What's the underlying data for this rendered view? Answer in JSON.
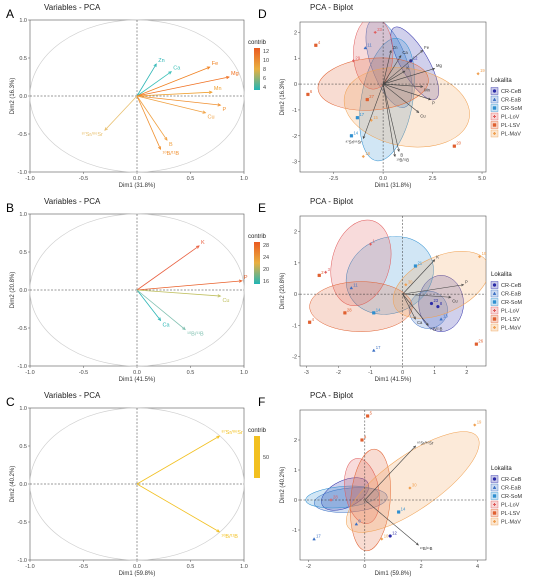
{
  "panels": {
    "A": "A",
    "B": "B",
    "C": "C",
    "D": "D",
    "E": "E",
    "F": "F"
  },
  "legend": {
    "title": "Lokalita",
    "entries": [
      {
        "label": "CR-CeB",
        "color": "#2b2ba8",
        "shape": "circle"
      },
      {
        "label": "CR-EaB",
        "color": "#3a6fc4",
        "shape": "triangle"
      },
      {
        "label": "CR-SoM",
        "color": "#2e8fd0",
        "shape": "square"
      },
      {
        "label": "PL-LoV",
        "color": "#e05a5a",
        "shape": "plus"
      },
      {
        "label": "PL-LSV",
        "color": "#e06030",
        "shape": "square-x"
      },
      {
        "label": "PL-MaV",
        "color": "#f0a050",
        "shape": "diamond"
      }
    ]
  },
  "contrib_legends": {
    "A": {
      "title": "contrib",
      "ticks": [
        "12",
        "10",
        "8",
        "6",
        "4"
      ]
    },
    "B": {
      "title": "contrib",
      "ticks": [
        "28",
        "24",
        "20",
        "16"
      ]
    },
    "C": {
      "title": "contrib",
      "ticks": [
        "50"
      ]
    }
  },
  "chart_data": [
    {
      "id": "A",
      "type": "scatter",
      "title": "Variables - PCA",
      "xlabel": "Dim1 (31.8%)",
      "ylabel": "Dim2 (16.3%)",
      "xlim": [
        -1.0,
        1.0
      ],
      "ylim": [
        -1.0,
        1.0
      ],
      "xticks": [
        "-1.0",
        "-0.5",
        "0.0",
        "0.5",
        "1.0"
      ],
      "yticks": [
        "1.0",
        "0.5",
        "0.0",
        "-0.5",
        "-1.0"
      ],
      "vectors": [
        {
          "label": "Zn",
          "x": 0.18,
          "y": 0.42,
          "color": "#2bb5b5"
        },
        {
          "label": "Ca",
          "x": 0.32,
          "y": 0.32,
          "color": "#3cc0b8"
        },
        {
          "label": "Fe",
          "x": 0.68,
          "y": 0.38,
          "color": "#f08020"
        },
        {
          "label": "Mg",
          "x": 0.86,
          "y": 0.25,
          "color": "#f07020"
        },
        {
          "label": "Mn",
          "x": 0.7,
          "y": 0.05,
          "color": "#f0a030"
        },
        {
          "label": "P",
          "x": 0.78,
          "y": -0.12,
          "color": "#f09030"
        },
        {
          "label": "Cu",
          "x": 0.64,
          "y": -0.22,
          "color": "#f0a040"
        },
        {
          "label": "B",
          "x": 0.28,
          "y": -0.58,
          "color": "#f0a040"
        },
        {
          "label": "¹⁰B/¹¹B",
          "x": 0.22,
          "y": -0.7,
          "color": "#f09030"
        },
        {
          "label": "⁸⁷Sr/⁸⁶Sr",
          "x": -0.3,
          "y": -0.45,
          "color": "#e8c070"
        }
      ]
    },
    {
      "id": "B",
      "type": "scatter",
      "title": "Variables - PCA",
      "xlabel": "Dim1 (41.5%)",
      "ylabel": "Dim2 (20.8%)",
      "xlim": [
        -1.0,
        1.0
      ],
      "ylim": [
        -1.0,
        1.0
      ],
      "xticks": [
        "-1.0",
        "-0.5",
        "0.0",
        "0.5",
        "1.0"
      ],
      "yticks": [
        "1.0",
        "0.5",
        "0.0",
        "-0.5",
        "-1.0"
      ],
      "vectors": [
        {
          "label": "K",
          "x": 0.58,
          "y": 0.58,
          "color": "#e96040"
        },
        {
          "label": "P",
          "x": 0.98,
          "y": 0.12,
          "color": "#e9602a"
        },
        {
          "label": "Cu",
          "x": 0.78,
          "y": -0.08,
          "color": "#c0c060"
        },
        {
          "label": "Ca",
          "x": 0.22,
          "y": -0.4,
          "color": "#2bb5b5"
        },
        {
          "label": "¹⁰B/¹¹B",
          "x": 0.45,
          "y": -0.52,
          "color": "#7fc0b0"
        }
      ]
    },
    {
      "id": "C",
      "type": "scatter",
      "title": "Variables - PCA",
      "xlabel": "Dim1 (59.8%)",
      "ylabel": "Dim2 (40.2%)",
      "xlim": [
        -1.0,
        1.0
      ],
      "ylim": [
        -1.0,
        1.0
      ],
      "xticks": [
        "-1.0",
        "-0.5",
        "0.0",
        "0.5",
        "1.0"
      ],
      "yticks": [
        "1.0",
        "0.5",
        "0.0",
        "-0.5",
        "-1.0"
      ],
      "vectors": [
        {
          "label": "⁸⁷Sr/⁸⁶Sr",
          "x": 0.77,
          "y": 0.63,
          "color": "#f2c020"
        },
        {
          "label": "¹⁰B/¹¹B",
          "x": 0.77,
          "y": -0.63,
          "color": "#f2c020"
        }
      ]
    },
    {
      "id": "D",
      "type": "scatter",
      "title": "PCA - Biplot",
      "xlabel": "Dim1 (31.8%)",
      "ylabel": "Dim2 (16.3%)",
      "xlim": [
        -4.2,
        5.2
      ],
      "ylim": [
        -3.4,
        2.4
      ],
      "xticks": [
        -2.5,
        0.0,
        2.5,
        5.0
      ],
      "xtick_labels": [
        "-2.5",
        "0.0",
        "2.5",
        "5.0"
      ],
      "yticks": [
        2,
        1,
        0,
        -1,
        -2,
        -3
      ],
      "ytick_labels": [
        "2",
        "1",
        "0",
        "-1",
        "-2",
        "-3"
      ],
      "ellipses": [
        {
          "group": "CR-CeB",
          "cx": 1.6,
          "cy": 0.8,
          "rx": 0.7,
          "ry": 1.6,
          "rot": 30
        },
        {
          "group": "CR-EaB",
          "cx": 0.3,
          "cy": 0.8,
          "rx": 0.9,
          "ry": 1.8,
          "rot": 20
        },
        {
          "group": "CR-SoM",
          "cx": 0.2,
          "cy": -0.6,
          "rx": 1.3,
          "ry": 2.4,
          "rot": -10
        },
        {
          "group": "PL-LoV",
          "cx": -0.5,
          "cy": 1.2,
          "rx": 1.0,
          "ry": 1.4,
          "rot": 0
        },
        {
          "group": "PL-LSV",
          "cx": -0.5,
          "cy": 0.0,
          "rx": 2.8,
          "ry": 1.0,
          "rot": 5
        },
        {
          "group": "PL-MaV",
          "cx": 1.2,
          "cy": -0.9,
          "rx": 3.2,
          "ry": 1.5,
          "rot": -10
        }
      ],
      "vectors": [
        {
          "label": "Fe",
          "x": 2.0,
          "y": 1.3
        },
        {
          "label": "Mg",
          "x": 2.6,
          "y": 0.6
        },
        {
          "label": "Mn",
          "x": 2.0,
          "y": -0.1
        },
        {
          "label": "P",
          "x": 2.4,
          "y": -0.6
        },
        {
          "label": "Cu",
          "x": 1.8,
          "y": -1.1
        },
        {
          "label": "Zn",
          "x": 0.4,
          "y": 1.3
        },
        {
          "label": "Ca",
          "x": 0.9,
          "y": 1.1
        },
        {
          "label": "K",
          "x": 1.1,
          "y": 0.5
        },
        {
          "label": "B",
          "x": 0.8,
          "y": -2.6
        },
        {
          "label": "¹⁰B/¹¹B",
          "x": 0.6,
          "y": -2.8
        },
        {
          "label": "⁸⁷Sr/⁸⁶Sr",
          "x": -1.0,
          "y": -2.1
        }
      ],
      "points": [
        {
          "label": "23",
          "x": -0.4,
          "y": 2.0,
          "group": "PL-LoV"
        },
        {
          "label": "4",
          "x": -3.4,
          "y": 1.5,
          "group": "PL-LSV"
        },
        {
          "label": "29",
          "x": -1.5,
          "y": 0.9,
          "group": "PL-LoV"
        },
        {
          "label": "6",
          "x": -3.8,
          "y": -0.4,
          "group": "PL-LSV"
        },
        {
          "label": "17",
          "x": -1.3,
          "y": -1.3,
          "group": "CR-SoM"
        },
        {
          "label": "18",
          "x": -1.0,
          "y": -2.8,
          "group": "PL-MaV"
        },
        {
          "label": "14",
          "x": -1.6,
          "y": -2.0,
          "group": "CR-SoM"
        },
        {
          "label": "20",
          "x": 3.6,
          "y": -2.4,
          "group": "PL-LSV"
        },
        {
          "label": "19",
          "x": 4.8,
          "y": 0.4,
          "group": "PL-MaV"
        },
        {
          "label": "12",
          "x": 1.4,
          "y": 0.9,
          "group": "CR-CeB"
        },
        {
          "label": "27",
          "x": -0.8,
          "y": -0.6,
          "group": "PL-LSV"
        },
        {
          "label": "15",
          "x": -0.6,
          "y": -1.4,
          "group": "PL-MaV"
        },
        {
          "label": "11",
          "x": -0.9,
          "y": 1.4,
          "group": "CR-EaB"
        }
      ]
    },
    {
      "id": "E",
      "type": "scatter",
      "title": "PCA - Biplot",
      "xlabel": "Dim1 (41.5%)",
      "ylabel": "Dim2 (20.8%)",
      "xlim": [
        -3.2,
        2.6
      ],
      "ylim": [
        -2.3,
        2.5
      ],
      "xticks": [
        -3,
        -2,
        -1,
        0,
        1,
        2
      ],
      "xtick_labels": [
        "-3",
        "-2",
        "-1",
        "0",
        "1",
        "2"
      ],
      "yticks": [
        2,
        1,
        0,
        -1,
        -2
      ],
      "ytick_labels": [
        "2",
        "1",
        "0",
        "-1",
        "-2"
      ],
      "ellipses": [
        {
          "group": "CR-CeB",
          "cx": 1.2,
          "cy": -0.3,
          "rx": 0.7,
          "ry": 0.9,
          "rot": 0
        },
        {
          "group": "CR-EaB",
          "cx": 0.8,
          "cy": -0.5,
          "rx": 0.6,
          "ry": 0.6,
          "rot": 0
        },
        {
          "group": "CR-SoM",
          "cx": -0.4,
          "cy": 0.6,
          "rx": 1.4,
          "ry": 1.2,
          "rot": 25
        },
        {
          "group": "PL-LoV",
          "cx": -1.3,
          "cy": 1.0,
          "rx": 0.9,
          "ry": 1.4,
          "rot": -15
        },
        {
          "group": "PL-LSV",
          "cx": -1.3,
          "cy": -0.4,
          "rx": 1.6,
          "ry": 0.8,
          "rot": 0
        },
        {
          "group": "PL-MaV",
          "cx": 1.2,
          "cy": 0.3,
          "rx": 1.6,
          "ry": 0.9,
          "rot": 25
        }
      ],
      "vectors": [
        {
          "label": "K",
          "x": 1.0,
          "y": 1.1
        },
        {
          "label": "P",
          "x": 1.9,
          "y": 0.3
        },
        {
          "label": "Cu",
          "x": 1.5,
          "y": -0.1
        },
        {
          "label": "Ca",
          "x": 0.4,
          "y": -0.8
        },
        {
          "label": "¹⁰B/¹¹B",
          "x": 0.8,
          "y": -1.0
        }
      ],
      "points": [
        {
          "label": "1",
          "x": -1.0,
          "y": 1.6,
          "group": "PL-LoV"
        },
        {
          "label": "2",
          "x": -2.6,
          "y": 0.6,
          "group": "PL-LSV"
        },
        {
          "label": "3",
          "x": -2.4,
          "y": 0.7,
          "group": "PL-LoV"
        },
        {
          "label": "4",
          "x": -2.9,
          "y": -0.9,
          "group": "PL-LSV"
        },
        {
          "label": "19",
          "x": 2.4,
          "y": 1.2,
          "group": "PL-MaV"
        },
        {
          "label": "21",
          "x": 0.4,
          "y": 0.9,
          "group": "CR-SoM"
        },
        {
          "label": "17",
          "x": -0.9,
          "y": -1.8,
          "group": "CR-EaB"
        },
        {
          "label": "26",
          "x": 2.3,
          "y": -1.6,
          "group": "PL-LSV"
        },
        {
          "label": "23",
          "x": 0.9,
          "y": -0.3,
          "group": "CR-CeB"
        },
        {
          "label": "11",
          "x": -1.6,
          "y": 0.2,
          "group": "CR-EaB"
        },
        {
          "label": "8",
          "x": 1.1,
          "y": -0.4,
          "group": "CR-CeB"
        },
        {
          "label": "14",
          "x": -0.9,
          "y": -0.6,
          "group": "CR-SoM"
        },
        {
          "label": "13",
          "x": 1.2,
          "y": -0.8,
          "group": "CR-EaB"
        },
        {
          "label": "28",
          "x": -1.8,
          "y": -0.6,
          "group": "PL-LSV"
        },
        {
          "label": "30",
          "x": 0.1,
          "y": 0.3,
          "group": "PL-MaV"
        }
      ]
    },
    {
      "id": "F",
      "type": "scatter",
      "title": "PCA - Biplot",
      "xlabel": "Dim1 (59.8%)",
      "ylabel": "Dim2 (40.2%)",
      "xlim": [
        -2.3,
        4.3
      ],
      "ylim": [
        -2.0,
        3.0
      ],
      "xticks": [
        -2,
        0,
        2,
        4
      ],
      "xtick_labels": [
        "-2",
        "0",
        "2",
        "4"
      ],
      "yticks": [
        2,
        1,
        0,
        -1
      ],
      "ytick_labels": [
        "2",
        "1",
        "0",
        "-1"
      ],
      "ellipses": [
        {
          "group": "CR-CeB",
          "cx": -0.7,
          "cy": 0.2,
          "rx": 0.9,
          "ry": 0.45,
          "rot": 25
        },
        {
          "group": "CR-EaB",
          "cx": -0.5,
          "cy": 0.0,
          "rx": 1.3,
          "ry": 0.4,
          "rot": 5
        },
        {
          "group": "CR-SoM",
          "cx": -0.8,
          "cy": 0.1,
          "rx": 1.3,
          "ry": 0.35,
          "rot": 5
        },
        {
          "group": "PL-LoV",
          "cx": -0.1,
          "cy": 0.3,
          "rx": 0.6,
          "ry": 1.1,
          "rot": 10
        },
        {
          "group": "PL-LSV",
          "cx": 0.2,
          "cy": 0.0,
          "rx": 0.7,
          "ry": 1.7,
          "rot": -5
        },
        {
          "group": "PL-MaV",
          "cx": 1.7,
          "cy": 0.6,
          "rx": 2.8,
          "ry": 0.9,
          "rot": 35
        }
      ],
      "vectors": [
        {
          "label": "⁸⁷Sr/⁸⁶Sr",
          "x": 1.8,
          "y": 1.8
        },
        {
          "label": "¹⁰B/¹¹B",
          "x": 1.9,
          "y": -1.5
        }
      ],
      "points": [
        {
          "label": "5",
          "x": 0.1,
          "y": 2.8,
          "group": "PL-LSV"
        },
        {
          "label": "19",
          "x": 3.9,
          "y": 2.5,
          "group": "PL-MaV"
        },
        {
          "label": "4",
          "x": -0.1,
          "y": 2.0,
          "group": "PL-LSV"
        },
        {
          "label": "17",
          "x": -1.8,
          "y": -1.3,
          "group": "CR-EaB"
        },
        {
          "label": "12",
          "x": 0.9,
          "y": -1.2,
          "group": "CR-CeB"
        },
        {
          "label": "14",
          "x": 1.2,
          "y": -0.4,
          "group": "CR-SoM"
        },
        {
          "label": "10",
          "x": 0.6,
          "y": -1.3,
          "group": "PL-MaV"
        },
        {
          "label": "28",
          "x": -1.2,
          "y": 0.0,
          "group": "PL-LoV"
        },
        {
          "label": "30",
          "x": 1.6,
          "y": 0.4,
          "group": "PL-MaV"
        },
        {
          "label": "8",
          "x": -0.3,
          "y": -0.8,
          "group": "CR-EaB"
        }
      ]
    }
  ]
}
